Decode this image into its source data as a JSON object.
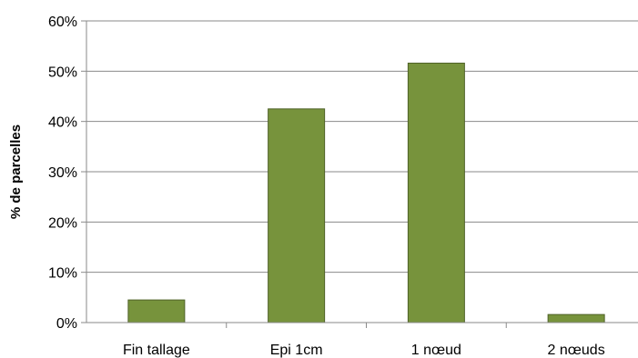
{
  "chart_data": {
    "type": "bar",
    "categories": [
      "Fin tallage",
      "Epi 1cm",
      "1 nœud",
      "2 nœuds"
    ],
    "values": [
      4.5,
      42.5,
      51.6,
      1.6
    ],
    "title": "",
    "xlabel": "",
    "ylabel": "% de parcelles",
    "ylim": [
      0,
      60
    ],
    "yticks": [
      0,
      10,
      20,
      30,
      40,
      50,
      60
    ],
    "ytick_labels": [
      "0%",
      "10%",
      "20%",
      "30%",
      "40%",
      "50%",
      "60%"
    ],
    "grid": true,
    "legend": "none",
    "bar_color": "#77933c",
    "bar_edge_color": "#4f6228"
  }
}
